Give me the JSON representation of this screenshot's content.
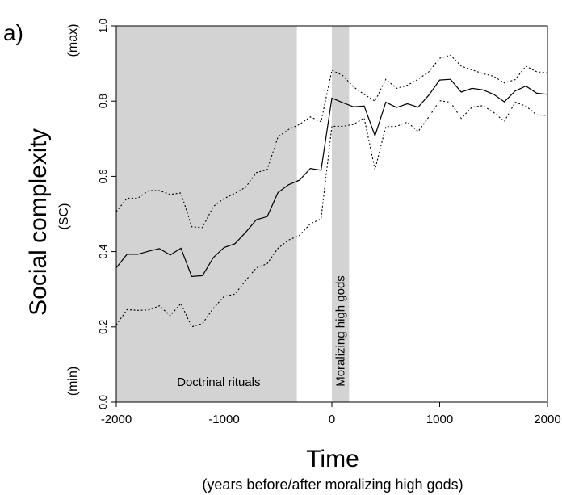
{
  "panel_label": "a)",
  "chart_data": {
    "type": "line",
    "title": "",
    "xlabel": "Time",
    "xlabel_sub": "(years before/after moralizing high gods)",
    "ylabel": "Social complexity",
    "ylabel_sub": "(SC)",
    "y_max_label": "(max)",
    "y_min_label": "(min)",
    "xlim": [
      -2000,
      2000
    ],
    "ylim": [
      0,
      1
    ],
    "x_ticks": [
      -2000,
      -1000,
      0,
      1000,
      2000
    ],
    "x_tick_labels": [
      "-2000",
      "-1000",
      "0",
      "1000",
      "2000"
    ],
    "y_ticks": [
      0,
      0.2,
      0.4,
      0.6,
      0.8,
      1
    ],
    "y_tick_labels": [
      "0.0",
      "0.2",
      "0.4",
      "0.6",
      "0.8",
      "1.0"
    ],
    "grid": false,
    "shaded_regions": [
      {
        "label": "Doctrinal rituals",
        "x_start": -2000,
        "x_end": -325,
        "color": "#d3d3d3"
      },
      {
        "label": "Moralizing high gods",
        "x_start": 0,
        "x_end": 160,
        "color": "#d3d3d3"
      }
    ],
    "series": [
      {
        "style": "solid",
        "points": [
          [
            -2000,
            0.357
          ],
          [
            -1900,
            0.393
          ],
          [
            -1800,
            0.393
          ],
          [
            -1700,
            0.401
          ],
          [
            -1600,
            0.408
          ],
          [
            -1500,
            0.391
          ],
          [
            -1400,
            0.409
          ],
          [
            -1300,
            0.334
          ],
          [
            -1200,
            0.336
          ],
          [
            -1100,
            0.384
          ],
          [
            -1000,
            0.411
          ],
          [
            -900,
            0.421
          ],
          [
            -800,
            0.451
          ],
          [
            -700,
            0.485
          ],
          [
            -600,
            0.493
          ],
          [
            -500,
            0.557
          ],
          [
            -400,
            0.578
          ],
          [
            -300,
            0.59
          ],
          [
            -200,
            0.621
          ],
          [
            -100,
            0.616
          ],
          [
            0,
            0.808
          ],
          [
            100,
            0.796
          ],
          [
            200,
            0.785
          ],
          [
            300,
            0.787
          ],
          [
            400,
            0.708
          ],
          [
            500,
            0.797
          ],
          [
            600,
            0.783
          ],
          [
            700,
            0.793
          ],
          [
            800,
            0.784
          ],
          [
            900,
            0.816
          ],
          [
            1000,
            0.856
          ],
          [
            1100,
            0.858
          ],
          [
            1200,
            0.824
          ],
          [
            1300,
            0.834
          ],
          [
            1400,
            0.83
          ],
          [
            1500,
            0.818
          ],
          [
            1600,
            0.798
          ],
          [
            1700,
            0.827
          ],
          [
            1800,
            0.84
          ],
          [
            1900,
            0.821
          ],
          [
            2000,
            0.818
          ]
        ]
      },
      {
        "style": "dotted",
        "points": [
          [
            -2000,
            0.506
          ],
          [
            -1900,
            0.542
          ],
          [
            -1800,
            0.542
          ],
          [
            -1700,
            0.562
          ],
          [
            -1600,
            0.562
          ],
          [
            -1500,
            0.552
          ],
          [
            -1400,
            0.556
          ],
          [
            -1300,
            0.466
          ],
          [
            -1200,
            0.464
          ],
          [
            -1100,
            0.52
          ],
          [
            -1000,
            0.541
          ],
          [
            -900,
            0.555
          ],
          [
            -800,
            0.571
          ],
          [
            -700,
            0.61
          ],
          [
            -600,
            0.618
          ],
          [
            -500,
            0.705
          ],
          [
            -400,
            0.725
          ],
          [
            -300,
            0.738
          ],
          [
            -200,
            0.758
          ],
          [
            -100,
            0.745
          ],
          [
            0,
            0.882
          ],
          [
            100,
            0.868
          ],
          [
            200,
            0.838
          ],
          [
            300,
            0.818
          ],
          [
            400,
            0.8
          ],
          [
            500,
            0.858
          ],
          [
            600,
            0.834
          ],
          [
            700,
            0.842
          ],
          [
            800,
            0.858
          ],
          [
            900,
            0.878
          ],
          [
            1000,
            0.914
          ],
          [
            1100,
            0.922
          ],
          [
            1200,
            0.893
          ],
          [
            1300,
            0.883
          ],
          [
            1400,
            0.873
          ],
          [
            1500,
            0.866
          ],
          [
            1600,
            0.848
          ],
          [
            1700,
            0.857
          ],
          [
            1800,
            0.893
          ],
          [
            1900,
            0.878
          ],
          [
            2000,
            0.875
          ]
        ]
      },
      {
        "style": "dotted",
        "points": [
          [
            -2000,
            0.205
          ],
          [
            -1900,
            0.246
          ],
          [
            -1800,
            0.244
          ],
          [
            -1700,
            0.245
          ],
          [
            -1600,
            0.256
          ],
          [
            -1500,
            0.23
          ],
          [
            -1400,
            0.262
          ],
          [
            -1300,
            0.2
          ],
          [
            -1200,
            0.209
          ],
          [
            -1100,
            0.249
          ],
          [
            -1000,
            0.281
          ],
          [
            -900,
            0.287
          ],
          [
            -800,
            0.323
          ],
          [
            -700,
            0.357
          ],
          [
            -600,
            0.368
          ],
          [
            -500,
            0.409
          ],
          [
            -400,
            0.431
          ],
          [
            -300,
            0.443
          ],
          [
            -200,
            0.474
          ],
          [
            -100,
            0.487
          ],
          [
            0,
            0.733
          ],
          [
            100,
            0.733
          ],
          [
            200,
            0.738
          ],
          [
            300,
            0.755
          ],
          [
            400,
            0.618
          ],
          [
            500,
            0.732
          ],
          [
            600,
            0.733
          ],
          [
            700,
            0.744
          ],
          [
            800,
            0.719
          ],
          [
            900,
            0.758
          ],
          [
            1000,
            0.801
          ],
          [
            1100,
            0.797
          ],
          [
            1200,
            0.754
          ],
          [
            1300,
            0.784
          ],
          [
            1400,
            0.788
          ],
          [
            1500,
            0.77
          ],
          [
            1600,
            0.746
          ],
          [
            1700,
            0.797
          ],
          [
            1800,
            0.787
          ],
          [
            1900,
            0.763
          ],
          [
            2000,
            0.762
          ]
        ]
      }
    ]
  }
}
